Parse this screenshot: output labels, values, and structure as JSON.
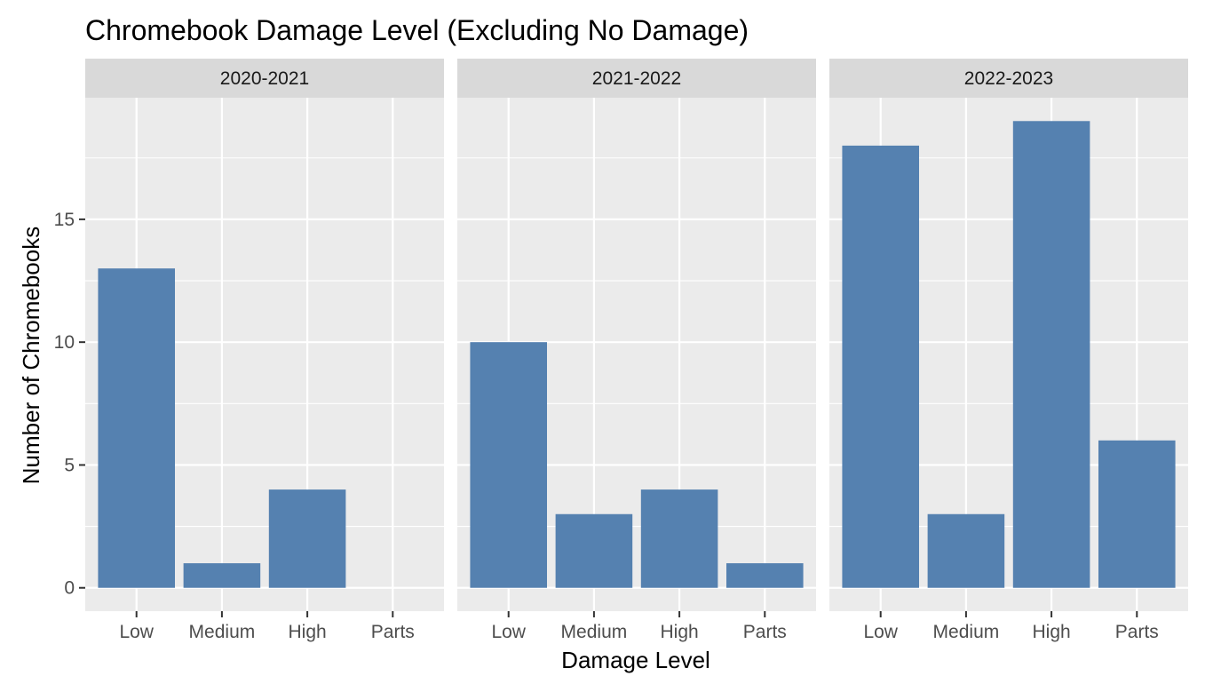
{
  "chart_data": {
    "type": "bar",
    "title": "Chromebook Damage Level (Excluding No Damage)",
    "xlabel": "Damage Level",
    "ylabel": "Number of Chromebooks",
    "categories": [
      "Low",
      "Medium",
      "High",
      "Parts"
    ],
    "yticks": [
      0,
      5,
      10,
      15
    ],
    "ylim": [
      -0.95,
      19.95
    ],
    "grid": true,
    "bar_color": "#5581B0",
    "panel_bg": "#EBEBEB",
    "strip_bg": "#D9D9D9",
    "facets": [
      {
        "label": "2020-2021",
        "values": [
          13,
          1,
          4,
          0
        ]
      },
      {
        "label": "2021-2022",
        "values": [
          10,
          3,
          4,
          1
        ]
      },
      {
        "label": "2022-2023",
        "values": [
          18,
          3,
          19,
          6
        ]
      }
    ]
  }
}
